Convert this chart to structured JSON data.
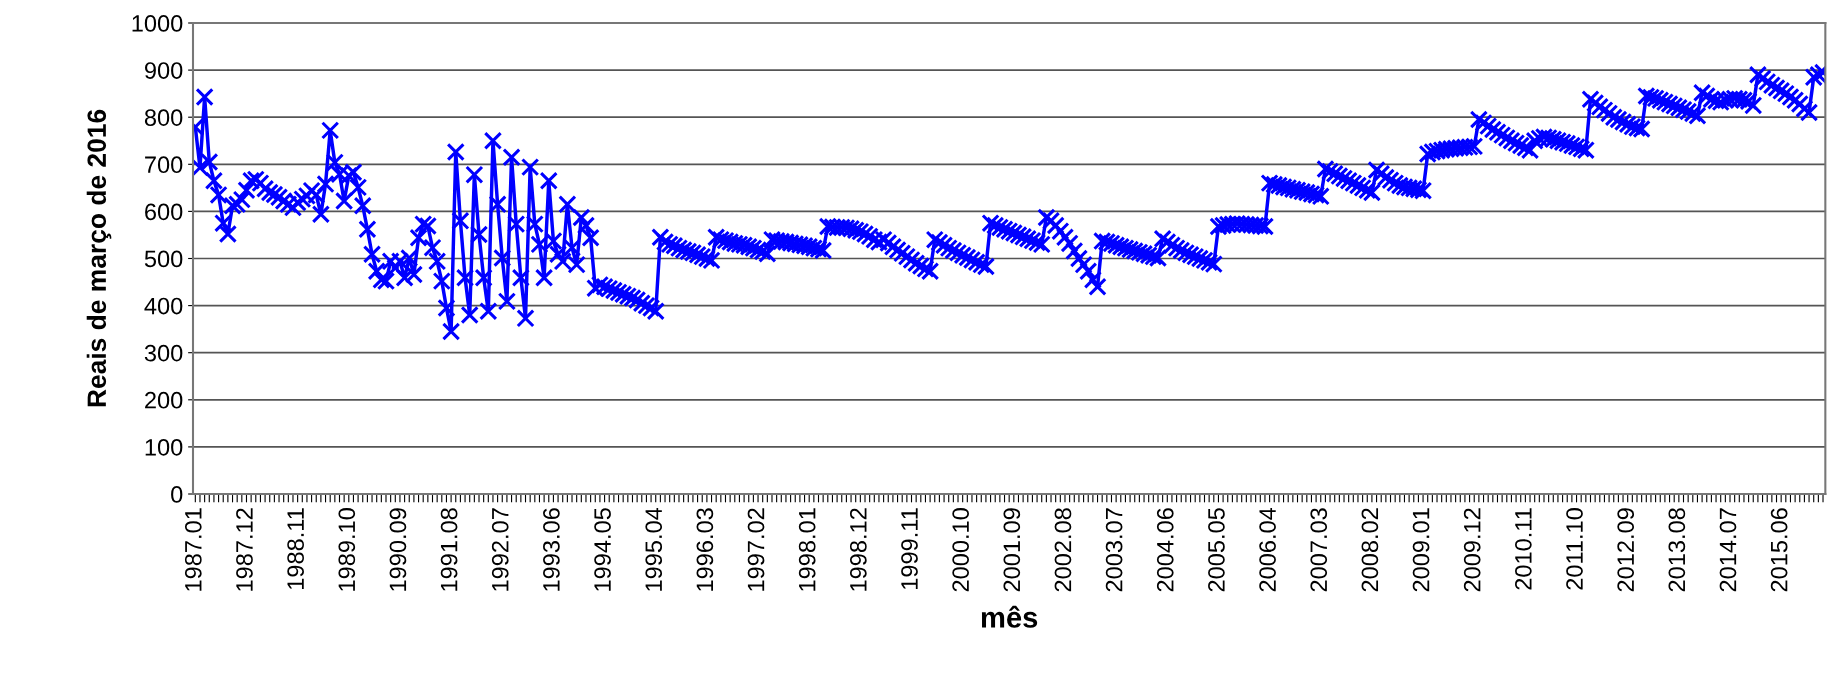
{
  "chart_data": {
    "type": "line",
    "xlabel": "mês",
    "ylabel": "Reais de março de 2016",
    "ylim": [
      0,
      1000
    ],
    "yticks": [
      0,
      100,
      200,
      300,
      400,
      500,
      600,
      700,
      800,
      900,
      1000
    ],
    "grid": "y",
    "marker": "cross",
    "line_style": "solid",
    "categories": [
      "1987.01",
      null,
      null,
      null,
      null,
      null,
      null,
      null,
      null,
      null,
      null,
      "1987.12",
      null,
      null,
      null,
      null,
      null,
      null,
      null,
      null,
      null,
      null,
      "1988.11",
      null,
      null,
      null,
      null,
      null,
      null,
      null,
      null,
      null,
      null,
      "1989.10",
      null,
      null,
      null,
      null,
      null,
      null,
      null,
      null,
      null,
      null,
      "1990.09",
      null,
      null,
      null,
      null,
      null,
      null,
      null,
      null,
      null,
      null,
      "1991.08",
      null,
      null,
      null,
      null,
      null,
      null,
      null,
      null,
      null,
      null,
      "1992.07",
      null,
      null,
      null,
      null,
      null,
      null,
      null,
      null,
      null,
      null,
      "1993.06",
      null,
      null,
      null,
      null,
      null,
      null,
      null,
      null,
      null,
      null,
      "1994.05",
      null,
      null,
      null,
      null,
      null,
      null,
      null,
      null,
      null,
      null,
      "1995.04",
      null,
      null,
      null,
      null,
      null,
      null,
      null,
      null,
      null,
      null,
      "1996.03",
      null,
      null,
      null,
      null,
      null,
      null,
      null,
      null,
      null,
      null,
      "1997.02",
      null,
      null,
      null,
      null,
      null,
      null,
      null,
      null,
      null,
      null,
      "1998.01",
      null,
      null,
      null,
      null,
      null,
      null,
      null,
      null,
      null,
      null,
      "1998.12",
      null,
      null,
      null,
      null,
      null,
      null,
      null,
      null,
      null,
      null,
      "1999.11",
      null,
      null,
      null,
      null,
      null,
      null,
      null,
      null,
      null,
      null,
      "2000.10",
      null,
      null,
      null,
      null,
      null,
      null,
      null,
      null,
      null,
      null,
      "2001.09",
      null,
      null,
      null,
      null,
      null,
      null,
      null,
      null,
      null,
      null,
      "2002.08",
      null,
      null,
      null,
      null,
      null,
      null,
      null,
      null,
      null,
      null,
      "2003.07",
      null,
      null,
      null,
      null,
      null,
      null,
      null,
      null,
      null,
      null,
      "2004.06",
      null,
      null,
      null,
      null,
      null,
      null,
      null,
      null,
      null,
      null,
      "2005.05",
      null,
      null,
      null,
      null,
      null,
      null,
      null,
      null,
      null,
      null,
      "2006.04",
      null,
      null,
      null,
      null,
      null,
      null,
      null,
      null,
      null,
      null,
      "2007.03",
      null,
      null,
      null,
      null,
      null,
      null,
      null,
      null,
      null,
      null,
      "2008.02",
      null,
      null,
      null,
      null,
      null,
      null,
      null,
      null,
      null,
      null,
      "2009.01",
      null,
      null,
      null,
      null,
      null,
      null,
      null,
      null,
      null,
      null,
      "2009.12",
      null,
      null,
      null,
      null,
      null,
      null,
      null,
      null,
      null,
      null,
      "2010.11",
      null,
      null,
      null,
      null,
      null,
      null,
      null,
      null,
      null,
      null,
      "2011.10",
      null,
      null,
      null,
      null,
      null,
      null,
      null,
      null,
      null,
      null,
      "2012.09",
      null,
      null,
      null,
      null,
      null,
      null,
      null,
      null,
      null,
      null,
      "2013.08",
      null,
      null,
      null,
      null,
      null,
      null,
      null,
      null,
      null,
      null,
      "2014.07",
      null,
      null,
      null,
      null,
      null,
      null,
      null,
      null,
      null,
      null,
      "2015.06",
      null,
      null,
      null,
      null,
      null,
      null,
      null,
      null,
      null
    ],
    "series": [
      {
        "color": "#0000ff",
        "values": [
          779,
          693,
          843,
          705,
          665,
          635,
          575,
          552,
          612,
          615,
          625,
          645,
          665,
          668,
          660,
          648,
          640,
          636,
          630,
          622,
          615,
          608,
          619,
          626,
          633,
          644,
          635,
          594,
          658,
          772,
          704,
          679,
          622,
          676,
          683,
          651,
          612,
          562,
          509,
          473,
          455,
          452,
          494,
          480,
          494,
          459,
          501,
          466,
          544,
          573,
          569,
          523,
          494,
          452,
          395,
          345,
          726,
          580,
          459,
          380,
          678,
          551,
          459,
          388,
          750,
          615,
          501,
          409,
          715,
          573,
          459,
          373,
          694,
          573,
          530,
          459,
          665,
          537,
          509,
          494,
          615,
          523,
          487,
          587,
          570,
          544,
          437,
          444,
          440,
          436,
          432,
          428,
          424,
          420,
          416,
          412,
          405,
          400,
          395,
          388,
          545,
          535,
          530,
          527,
          522,
          518,
          515,
          512,
          508,
          504,
          500,
          496,
          545,
          540,
          538,
          535,
          532,
          530,
          528,
          525,
          522,
          518,
          515,
          510,
          540,
          538,
          536,
          535,
          533,
          531,
          529,
          527,
          525,
          522,
          520,
          517,
          568,
          567,
          566,
          566,
          565,
          563,
          560,
          557,
          552,
          547,
          540,
          535,
          540,
          533,
          525,
          518,
          511,
          504,
          497,
          490,
          484,
          478,
          473,
          540,
          534,
          528,
          522,
          517,
          512,
          507,
          502,
          497,
          492,
          487,
          483,
          575,
          570,
          566,
          562,
          558,
          554,
          550,
          546,
          542,
          538,
          534,
          530,
          587,
          580,
          570,
          558,
          545,
          532,
          516,
          500,
          487,
          473,
          455,
          440,
          537,
          535,
          532,
          528,
          525,
          522,
          519,
          516,
          513,
          510,
          507,
          504,
          501,
          542,
          535,
          528,
          522,
          517,
          512,
          508,
          504,
          500,
          496,
          492,
          488,
          568,
          570,
          572,
          573,
          574,
          573,
          572,
          571,
          570,
          569,
          568,
          660,
          657,
          655,
          652,
          650,
          647,
          645,
          642,
          640,
          637,
          635,
          632,
          690,
          685,
          680,
          675,
          670,
          665,
          660,
          655,
          650,
          645,
          640,
          688,
          680,
          672,
          666,
          660,
          655,
          652,
          650,
          648,
          646,
          644,
          722,
          726,
          728,
          730,
          732,
          733,
          734,
          735,
          736,
          737,
          738,
          795,
          788,
          781,
          774,
          768,
          762,
          756,
          750,
          745,
          740,
          735,
          730,
          750,
          755,
          758,
          756,
          753,
          750,
          747,
          744,
          740,
          737,
          733,
          730,
          838,
          830,
          822,
          815,
          808,
          800,
          795,
          790,
          785,
          780,
          777,
          775,
          845,
          842,
          840,
          836,
          832,
          828,
          824,
          820,
          816,
          812,
          808,
          803,
          852,
          845,
          838,
          835,
          832,
          836,
          838,
          840,
          838,
          836,
          834,
          825,
          890,
          882,
          875,
          868,
          862,
          856,
          850,
          843,
          836,
          828,
          818,
          810,
          885,
          890,
          895
        ]
      }
    ]
  }
}
